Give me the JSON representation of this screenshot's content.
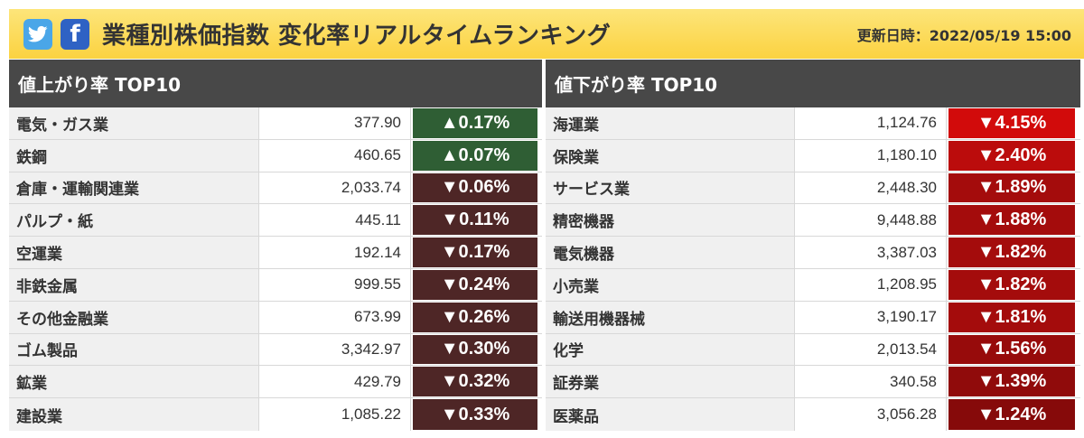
{
  "header": {
    "title": "業種別株価指数 変化率リアルタイムランキング",
    "updated": "更新日時：2022/05/19 15:00",
    "social": [
      "twitter-icon",
      "facebook-icon"
    ]
  },
  "colors": {
    "header_bg": "#fbd240",
    "panel_head_bg": "#484848",
    "up_green": "#2f5e34",
    "down_dark": "#4e2626",
    "down_red_strong": "#d20b0b",
    "down_red": "#ad0c0c",
    "down_red_deep": "#860a0a"
  },
  "gainers": {
    "heading": "値上がり率 TOP10",
    "rows": [
      {
        "name": "電気・ガス業",
        "value": "377.90",
        "change": "▲0.17%",
        "color": "#2f5e34"
      },
      {
        "name": "鉄鋼",
        "value": "460.65",
        "change": "▲0.07%",
        "color": "#2f5e34"
      },
      {
        "name": "倉庫・運輸関連業",
        "value": "2,033.74",
        "change": "▼0.06%",
        "color": "#4e2626"
      },
      {
        "name": "パルプ・紙",
        "value": "445.11",
        "change": "▼0.11%",
        "color": "#4e2626"
      },
      {
        "name": "空運業",
        "value": "192.14",
        "change": "▼0.17%",
        "color": "#4e2626"
      },
      {
        "name": "非鉄金属",
        "value": "999.55",
        "change": "▼0.24%",
        "color": "#4e2626"
      },
      {
        "name": "その他金融業",
        "value": "673.99",
        "change": "▼0.26%",
        "color": "#4e2626"
      },
      {
        "name": "ゴム製品",
        "value": "3,342.97",
        "change": "▼0.30%",
        "color": "#4e2626"
      },
      {
        "name": "鉱業",
        "value": "429.79",
        "change": "▼0.32%",
        "color": "#4e2626"
      },
      {
        "name": "建設業",
        "value": "1,085.22",
        "change": "▼0.33%",
        "color": "#4e2626"
      }
    ]
  },
  "losers": {
    "heading": "値下がり率 TOP10",
    "rows": [
      {
        "name": "海運業",
        "value": "1,124.76",
        "change": "▼4.15%",
        "color": "#d20b0b"
      },
      {
        "name": "保険業",
        "value": "1,180.10",
        "change": "▼2.40%",
        "color": "#bb0c0c"
      },
      {
        "name": "サービス業",
        "value": "2,448.30",
        "change": "▼1.89%",
        "color": "#a40c0c"
      },
      {
        "name": "精密機器",
        "value": "9,448.88",
        "change": "▼1.88%",
        "color": "#a40c0c"
      },
      {
        "name": "電気機器",
        "value": "3,387.03",
        "change": "▼1.82%",
        "color": "#a40c0c"
      },
      {
        "name": "小売業",
        "value": "1,208.95",
        "change": "▼1.82%",
        "color": "#a40c0c"
      },
      {
        "name": "輸送用機器械",
        "value": "3,190.17",
        "change": "▼1.81%",
        "color": "#a40c0c"
      },
      {
        "name": "化学",
        "value": "2,013.54",
        "change": "▼1.56%",
        "color": "#970b0b"
      },
      {
        "name": "証券業",
        "value": "340.58",
        "change": "▼1.39%",
        "color": "#900b0b"
      },
      {
        "name": "医薬品",
        "value": "3,056.28",
        "change": "▼1.24%",
        "color": "#860a0a"
      }
    ]
  }
}
